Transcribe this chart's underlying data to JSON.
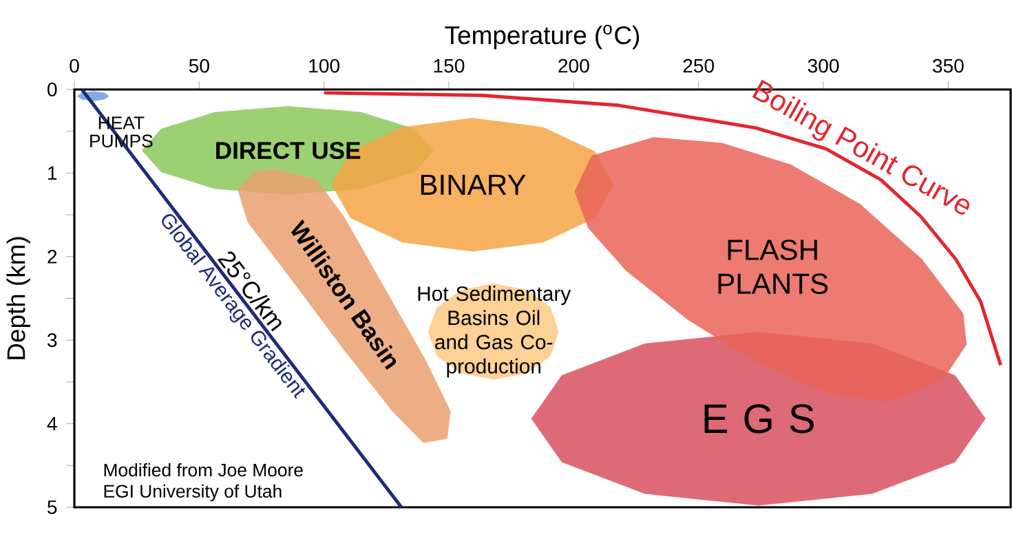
{
  "chart_data": {
    "type": "line",
    "xlabel": "Temperature ($^{o}$C)",
    "ylabel": "Depth (km)",
    "xlim": [
      0,
      375
    ],
    "ylim": [
      5,
      0
    ],
    "xticks": [
      0,
      50,
      100,
      150,
      200,
      250,
      300,
      350
    ],
    "yticks": [
      0,
      {
        "value": 0.5,
        "label": null
      },
      1,
      {
        "value": 1.5,
        "label": null
      },
      2,
      {
        "value": 2.5,
        "label": null
      },
      3,
      {
        "value": 3.5,
        "label": null
      },
      4,
      {
        "value": 4.5,
        "label": null
      },
      5
    ],
    "series": [
      {
        "name": "DIRECT USE",
        "type": "area",
        "color": "#8cc85a",
        "x": [
          144,
          136.2,
          114.8,
          85.5,
          56.3,
          34.8,
          27,
          34.8,
          56.3,
          85.5,
          114.8,
          136.2
        ],
        "values": [
          0.73,
          0.47,
          0.27,
          0.2,
          0.27,
          0.47,
          0.73,
          0.99,
          1.19,
          1.26,
          1.19,
          0.99
        ]
      },
      {
        "name": "Williston Basin",
        "type": "area",
        "color": "#eba070",
        "x": [
          80.5,
          97,
          108,
          124.6,
          141.1,
          150.7,
          149.4,
          139.7,
          127.3,
          108,
          86,
          69.4,
          65.3,
          72.2
        ],
        "values": [
          0.95,
          1.08,
          1.52,
          2.39,
          3.26,
          3.85,
          4.18,
          4.23,
          3.85,
          3.12,
          2.24,
          1.59,
          1.19,
          0.99
        ]
      },
      {
        "name": "BINARY",
        "type": "area",
        "color": "#f5a445",
        "x": [
          216,
          208.4,
          187.8,
          159.5,
          131.3,
          110.6,
          103,
          110.6,
          131.3,
          159.5,
          187.8,
          208.4
        ],
        "values": [
          1.14,
          0.74,
          0.45,
          0.34,
          0.45,
          0.74,
          1.14,
          1.54,
          1.83,
          1.94,
          1.83,
          1.54
        ]
      },
      {
        "name": "Hot Sedimentary Basins Oil and Gas Co-production",
        "type": "area",
        "color": "#fcc983",
        "x": [
          194,
          190.8,
          181.2,
          168,
          154.9,
          145.2,
          141.6,
          145.2,
          154.9,
          168,
          181.2,
          190.8
        ],
        "values": [
          2.9,
          2.61,
          2.4,
          2.32,
          2.4,
          2.61,
          2.9,
          3.19,
          3.4,
          3.47,
          3.4,
          3.19
        ]
      },
      {
        "name": "E G S",
        "type": "area",
        "color": "#d9505f",
        "x": [
          365,
          352.8,
          319.5,
          274,
          228.5,
          195.2,
          183,
          195.2,
          228.5,
          274,
          319.5,
          352.8
        ],
        "values": [
          3.94,
          3.42,
          3.04,
          2.9,
          3.04,
          3.42,
          3.94,
          4.46,
          4.84,
          4.98,
          4.84,
          4.46
        ]
      },
      {
        "name": "FLASH PLANTS",
        "type": "area",
        "color": "#ea6458",
        "x": [
          232,
          259.6,
          287.1,
          314.7,
          339.5,
          356,
          357.4,
          347.8,
          325.7,
          300.9,
          273.4,
          245.8,
          221,
          205.8,
          200.3,
          207.2
        ],
        "values": [
          0.57,
          0.64,
          0.9,
          1.37,
          2.03,
          2.68,
          3.05,
          3.48,
          3.74,
          3.63,
          3.27,
          2.76,
          2.17,
          1.66,
          1.22,
          0.79
        ]
      },
      {
        "name": "HEAT PUMPS",
        "type": "area",
        "color": "#6a9fd8",
        "x": [
          14,
          12.1,
          7.5,
          2.9,
          1,
          2.9,
          7.5,
          12.1
        ],
        "values": [
          0.08,
          0.04,
          0.02,
          0.04,
          0.08,
          0.12,
          0.14,
          0.12
        ]
      },
      {
        "name": "Global Average Gradient",
        "color": "#1f2a7a",
        "x": [
          3,
          131
        ],
        "values": [
          0,
          5
        ]
      },
      {
        "name": "Boiling Point Curve",
        "color": "#e3262e",
        "x": [
          100,
          163,
          218,
          273,
          301,
          323,
          339,
          353,
          363,
          371
        ],
        "values": [
          0.04,
          0.07,
          0.19,
          0.46,
          0.71,
          1.08,
          1.52,
          2.03,
          2.54,
          3.3
        ]
      }
    ],
    "annotations": [
      "25°C/km",
      "Modified from Joe Moore",
      "EGI University of Utah"
    ]
  }
}
